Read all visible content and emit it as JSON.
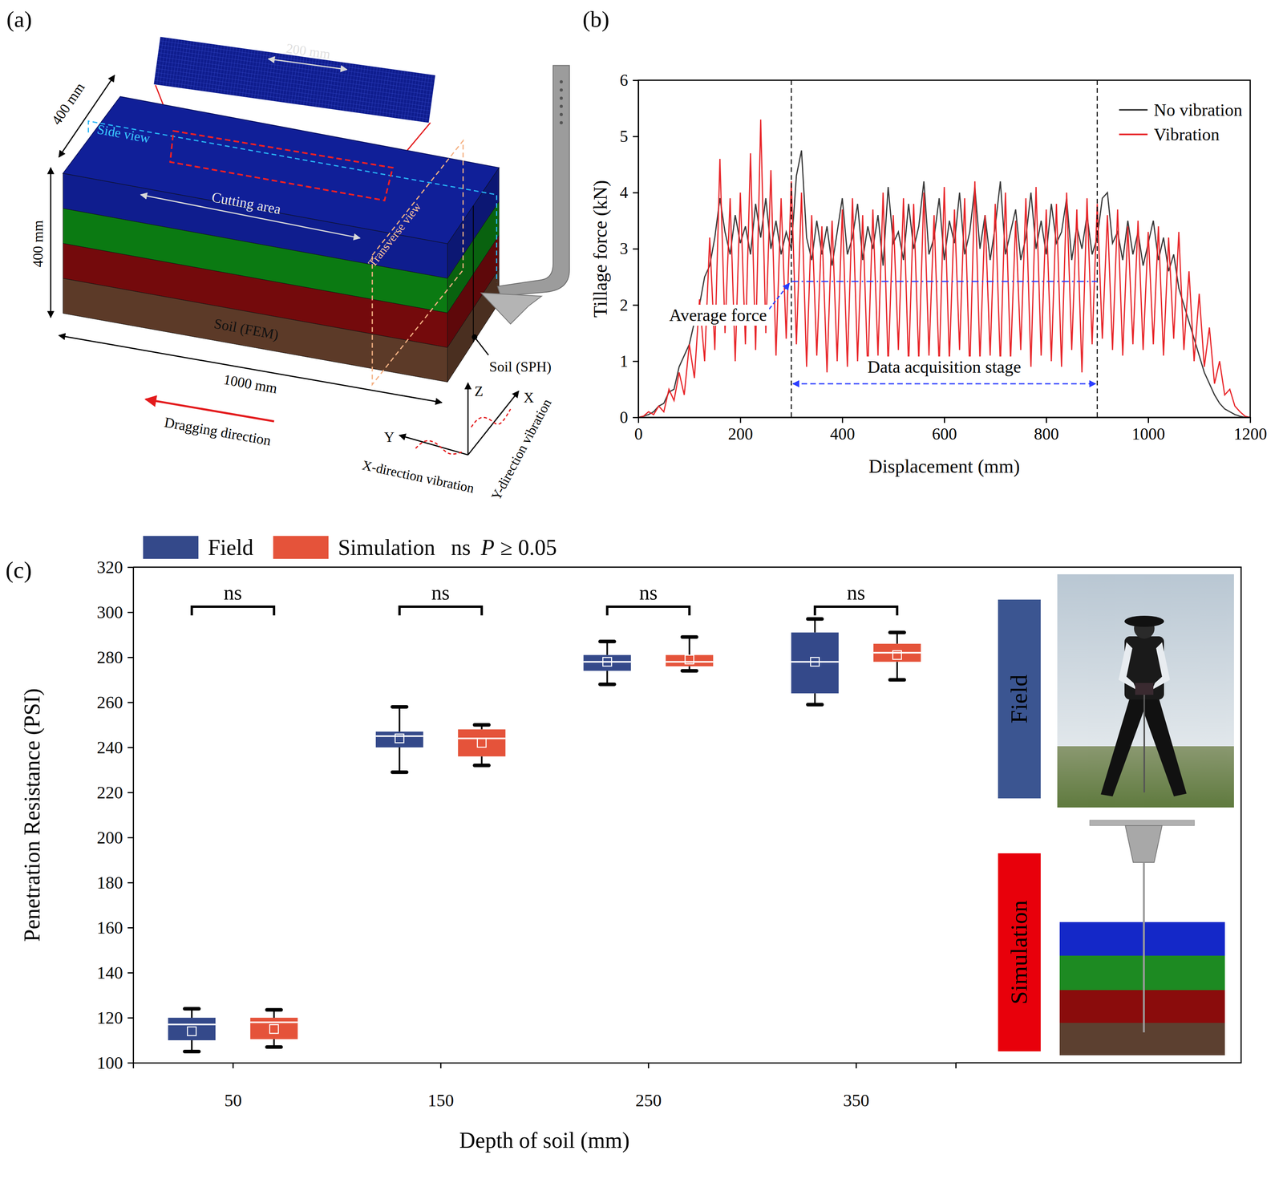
{
  "diagram": {
    "panel_label": "(a)",
    "dimensions": {
      "window": "200 mm",
      "width": "400 mm",
      "height": "400 mm",
      "length": "1000 mm"
    },
    "labels": {
      "side_view": "Side view",
      "cutting_area": "Cutting area",
      "transverse_view": "Transverse view",
      "soil_fem": "Soil (FEM)",
      "soil_sph": "Soil (SPH)",
      "dragging": "Dragging direction"
    },
    "axes": {
      "z": "Z",
      "x": "X",
      "y": "Y",
      "x_vibration": "X-direction vibration",
      "y_vibration": "Y-direction vibration"
    },
    "layers": [
      "#0f1d8e",
      "#0b7a12",
      "#740a0c",
      "#5c3a28"
    ]
  },
  "chart_data": [
    {
      "type": "line",
      "panel_label": "(b)",
      "xlabel": "Displacement (mm)",
      "ylabel": "Tillage force (kN)",
      "x": [
        0,
        10,
        20,
        30,
        40,
        50,
        60,
        70,
        80,
        90,
        100,
        110,
        120,
        130,
        140,
        150,
        160,
        170,
        180,
        190,
        200,
        210,
        220,
        230,
        240,
        250,
        260,
        270,
        280,
        290,
        300,
        310,
        320,
        330,
        340,
        350,
        360,
        370,
        380,
        390,
        400,
        410,
        420,
        430,
        440,
        450,
        460,
        470,
        480,
        490,
        500,
        510,
        520,
        530,
        540,
        550,
        560,
        570,
        580,
        590,
        600,
        610,
        620,
        630,
        640,
        650,
        660,
        670,
        680,
        690,
        700,
        710,
        720,
        730,
        740,
        750,
        760,
        770,
        780,
        790,
        800,
        810,
        820,
        830,
        840,
        850,
        860,
        870,
        880,
        890,
        900,
        910,
        920,
        930,
        940,
        950,
        960,
        970,
        980,
        990,
        1000,
        1010,
        1020,
        1030,
        1040,
        1050,
        1060,
        1070,
        1080,
        1090,
        1100,
        1110,
        1120,
        1130,
        1140,
        1150,
        1160,
        1170,
        1180,
        1190,
        1200
      ],
      "series": [
        {
          "name": "No vibration",
          "color": "#3a3a3a",
          "values": [
            0,
            0.02,
            0.05,
            0.1,
            0.2,
            0.25,
            0.45,
            0.5,
            0.9,
            1.1,
            1.3,
            1.7,
            2.0,
            2.5,
            2.7,
            3.2,
            3.9,
            3.3,
            2.9,
            3.6,
            3.1,
            3.4,
            2.9,
            3.8,
            3.2,
            3.9,
            3.0,
            3.5,
            2.9,
            3.3,
            3.0,
            4.3,
            4.75,
            3.2,
            2.8,
            3.5,
            2.9,
            3.4,
            2.7,
            3.3,
            3.9,
            2.9,
            3.2,
            3.8,
            2.8,
            3.4,
            3.0,
            3.6,
            2.7,
            4.1,
            3.1,
            3.3,
            2.8,
            3.8,
            3.0,
            3.4,
            4.2,
            2.9,
            3.2,
            3.9,
            2.8,
            3.5,
            3.1,
            4.0,
            2.9,
            3.3,
            4.1,
            3.0,
            3.6,
            2.8,
            3.4,
            4.2,
            2.9,
            3.3,
            3.7,
            2.8,
            3.2,
            4.0,
            3.0,
            3.5,
            2.9,
            3.8,
            3.1,
            3.3,
            3.9,
            2.8,
            3.4,
            3.0,
            3.6,
            2.9,
            3.2,
            3.9,
            4.0,
            3.1,
            3.3,
            2.8,
            3.5,
            2.9,
            3.3,
            2.7,
            3.1,
            3.5,
            2.8,
            3.2,
            2.6,
            2.9,
            2.3,
            2.0,
            1.7,
            1.4,
            1.1,
            0.8,
            0.6,
            0.4,
            0.25,
            0.15,
            0.1,
            0.05,
            0.02,
            0,
            0
          ]
        },
        {
          "name": "Vibration",
          "color": "#e8262a",
          "values": [
            0,
            0.02,
            0.1,
            0.05,
            0.2,
            0.1,
            0.5,
            0.3,
            0.8,
            0.4,
            1.3,
            0.7,
            2.1,
            1.0,
            3.2,
            1.2,
            4.6,
            1.5,
            3.9,
            1.0,
            4.0,
            1.3,
            4.7,
            1.2,
            5.3,
            1.5,
            4.4,
            1.1,
            3.9,
            1.4,
            4.2,
            1.3,
            4.0,
            0.9,
            3.6,
            1.1,
            3.4,
            0.8,
            3.5,
            1.0,
            3.7,
            0.9,
            3.9,
            1.0,
            3.6,
            0.8,
            3.7,
            1.1,
            4.0,
            0.9,
            3.6,
            1.2,
            3.9,
            0.9,
            3.8,
            1.0,
            4.0,
            1.1,
            3.6,
            0.9,
            4.1,
            1.0,
            3.7,
            1.2,
            3.9,
            0.8,
            4.2,
            1.0,
            3.6,
            1.1,
            3.8,
            0.9,
            4.0,
            1.0,
            3.5,
            1.2,
            3.9,
            0.9,
            4.1,
            1.1,
            3.7,
            1.0,
            3.8,
            0.9,
            4.0,
            1.2,
            3.7,
            0.8,
            3.9,
            1.3,
            3.8,
            1.4,
            3.6,
            1.2,
            3.7,
            1.1,
            3.4,
            1.3,
            3.5,
            1.2,
            3.3,
            1.3,
            3.4,
            1.1,
            3.2,
            1.4,
            3.3,
            1.2,
            2.6,
            1.0,
            2.2,
            0.9,
            1.6,
            0.6,
            1.0,
            0.4,
            0.5,
            0.2,
            0.1,
            0.02,
            0
          ]
        }
      ],
      "xlim": [
        0,
        1200
      ],
      "xticks": [
        0,
        200,
        400,
        600,
        800,
        1000,
        1200
      ],
      "ylim": [
        0,
        6
      ],
      "yticks": [
        0,
        1,
        2,
        3,
        4,
        5,
        6
      ],
      "legend": "upper right",
      "annotations": [
        {
          "text": "Average force",
          "x": [
            300,
            900
          ],
          "y": 2.42
        },
        {
          "text": "Data acquisition stage",
          "x": [
            300,
            900
          ]
        }
      ]
    },
    {
      "type": "box",
      "panel_label": "(c)",
      "xlabel": "Depth of soil (mm)",
      "ylabel": "Penetration Resistance (PSI)",
      "categories": [
        "50",
        "150",
        "250",
        "350"
      ],
      "series": [
        {
          "name": "Field",
          "color": "#34498a",
          "min": [
            105,
            229,
            268,
            259
          ],
          "q1": [
            110,
            240,
            274,
            264
          ],
          "median": [
            117,
            245,
            278,
            278
          ],
          "q3": [
            120,
            247,
            281,
            291
          ],
          "max": [
            124,
            258,
            287,
            297
          ],
          "mean": [
            114,
            244,
            278,
            278
          ]
        },
        {
          "name": "Simulation",
          "color": "#e5533a",
          "min": [
            107,
            232,
            274,
            270
          ],
          "q1": [
            110.5,
            236,
            276,
            278
          ],
          "median": [
            118,
            244,
            278,
            282
          ],
          "q3": [
            120,
            248,
            281,
            286
          ],
          "max": [
            123.5,
            250,
            289,
            291
          ],
          "mean": [
            115,
            242,
            279,
            281
          ]
        }
      ],
      "ylim": [
        100,
        320
      ],
      "yticks": [
        100,
        120,
        140,
        160,
        180,
        200,
        220,
        240,
        260,
        280,
        300,
        320
      ],
      "legend": "top",
      "significance_labels": [
        "ns",
        "ns",
        "ns",
        "ns"
      ],
      "significance_note": [
        "ns",
        "P",
        "≥ 0.05"
      ],
      "insets": [
        {
          "label": "Field",
          "color": "#3b5591"
        },
        {
          "label": "Simulation",
          "color": "#e8000b"
        }
      ]
    }
  ]
}
